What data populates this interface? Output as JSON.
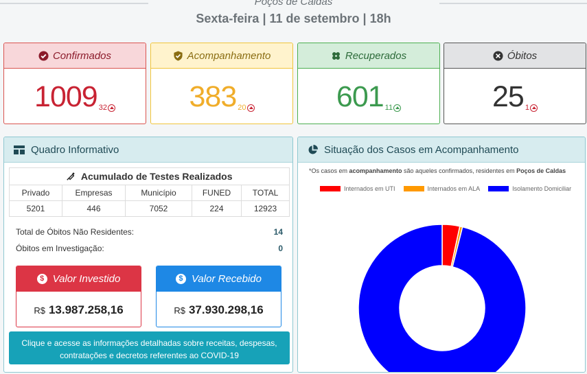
{
  "header": {
    "city": "Poços de Caldas",
    "date": "Sexta-feira | 11 de setembro | 18h"
  },
  "cards": [
    {
      "label": "Confirmados",
      "value": "1009",
      "delta": "32",
      "color": "#c82333",
      "head_bg": "#f8d7da",
      "border": "#d9534f"
    },
    {
      "label": "Acompanhamento",
      "value": "383",
      "delta": "20",
      "color": "#f0ad2a",
      "head_bg": "#fff3cd",
      "border": "#f0c43a"
    },
    {
      "label": "Recuperados",
      "value": "601",
      "delta": "11",
      "color": "#3c9a4f",
      "head_bg": "#d4edda",
      "border": "#4caf50"
    },
    {
      "label": "Óbitos",
      "value": "25",
      "delta": "1",
      "color": "#333333",
      "head_bg": "#e2e3e5",
      "border": "#555555"
    }
  ],
  "quadro": {
    "title": "Quadro Informativo",
    "table_title": "Acumulado de Testes Realizados",
    "columns": [
      "Privado",
      "Empresas",
      "Município",
      "FUNED",
      "TOTAL"
    ],
    "values": [
      "5201",
      "446",
      "7052",
      "224",
      "12923"
    ],
    "rows": [
      {
        "label": "Total de Óbitos Não Residentes:",
        "value": "14"
      },
      {
        "label": "Óbitos em Investigação:",
        "value": "0"
      }
    ],
    "investido": {
      "label": "Valor Investido",
      "currency": "R$",
      "value": "13.987.258,16",
      "color": "#dc3545"
    },
    "recebido": {
      "label": "Valor Recebido",
      "currency": "R$",
      "value": "37.930.298,16",
      "color": "#1e88e5"
    },
    "button_text": "Clique e acesse as informações detalhadas sobre receitas, despesas, contratações e decretos referentes ao COVID-19"
  },
  "situacao": {
    "title": "Situação dos Casos em Acompanhamento",
    "note_prefix": "*Os casos em ",
    "note_bold1": "acompanhamento",
    "note_mid": " são aqueles confirmados, residentes em ",
    "note_bold2": "Poços de Caldas"
  },
  "chart_data": {
    "type": "pie",
    "donut": true,
    "legend_position": "top",
    "series": [
      {
        "name": "Internados em UTI",
        "value": 13,
        "color": "#ff0000"
      },
      {
        "name": "Internados em ALA",
        "value": 2,
        "color": "#ff9900"
      },
      {
        "name": "Isolamento Domiciliar",
        "value": 368,
        "color": "#0000ff"
      }
    ]
  }
}
